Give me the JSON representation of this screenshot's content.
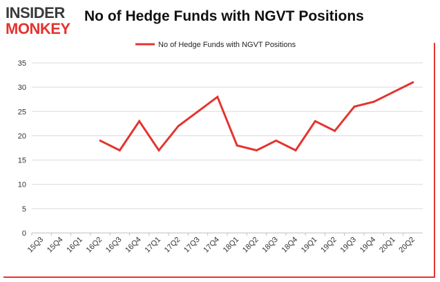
{
  "brand": {
    "line1": "INSIDER",
    "line2": "MONKEY"
  },
  "chart_data": {
    "type": "line",
    "title": "No of Hedge Funds with NGVT Positions",
    "xlabel": "",
    "ylabel": "",
    "categories": [
      "15Q3",
      "15Q4",
      "16Q1",
      "16Q2",
      "16Q3",
      "16Q4",
      "17Q1",
      "17Q2",
      "17Q3",
      "17Q4",
      "18Q1",
      "18Q2",
      "18Q3",
      "18Q4",
      "19Q1",
      "19Q2",
      "19Q3",
      "19Q4",
      "20Q1",
      "20Q2"
    ],
    "series": [
      {
        "name": "No of Hedge Funds with NGVT Positions",
        "color": "#e3342f",
        "values": [
          null,
          null,
          null,
          19,
          17,
          23,
          17,
          22,
          25,
          28,
          18,
          17,
          19,
          17,
          23,
          21,
          26,
          27,
          29,
          31
        ]
      }
    ],
    "ylim": [
      0,
      35
    ],
    "yticks": [
      0,
      5,
      10,
      15,
      20,
      25,
      30,
      35
    ],
    "grid": true,
    "legend": "top-center"
  }
}
